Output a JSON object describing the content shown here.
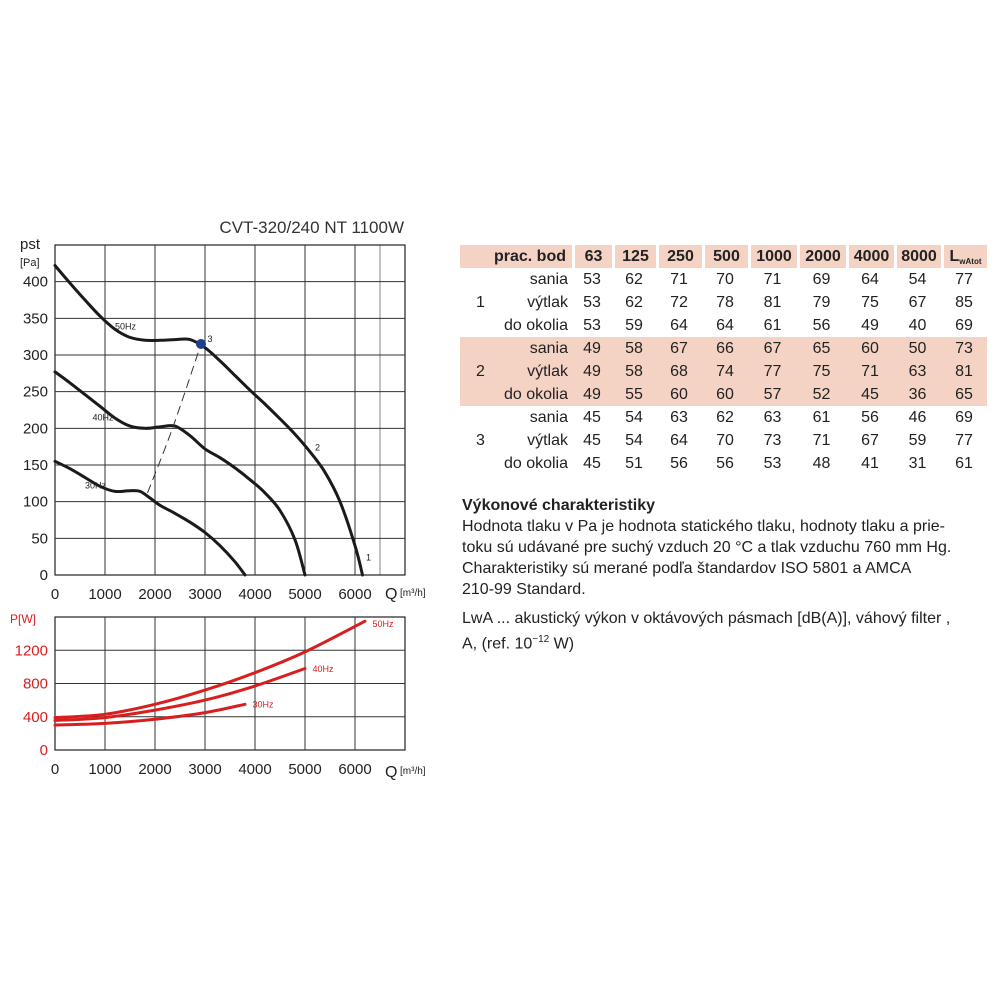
{
  "chart_data": [
    {
      "type": "line",
      "title": "CVT-320/240 NT 1100W",
      "ylabel": "pst",
      "yunit": "[Pa]",
      "xlabel": "Q",
      "xunit": "[m³/h]",
      "xlim": [
        0,
        7000
      ],
      "ylim": [
        0,
        450
      ],
      "xticks": [
        0,
        1000,
        2000,
        3000,
        4000,
        5000,
        6000
      ],
      "yticks": [
        0,
        50,
        100,
        150,
        200,
        250,
        300,
        350,
        400
      ],
      "grid": true,
      "series": [
        {
          "name": "50Hz",
          "x": [
            0,
            300,
            600,
            900,
            1200,
            1500,
            1800,
            2100,
            2400,
            2700,
            3000,
            3300,
            3600,
            3900,
            4200,
            4500,
            4800,
            5100,
            5400,
            5700,
            6000,
            6150
          ],
          "y": [
            422,
            398,
            375,
            353,
            335,
            324,
            320,
            320,
            321,
            321,
            310,
            292,
            272,
            252,
            233,
            213,
            192,
            168,
            140,
            100,
            40,
            0
          ]
        },
        {
          "name": "40Hz",
          "x": [
            0,
            300,
            600,
            900,
            1200,
            1500,
            1800,
            2100,
            2400,
            2700,
            3000,
            3300,
            3600,
            3900,
            4200,
            4500,
            4800,
            5000
          ],
          "y": [
            277,
            262,
            246,
            230,
            214,
            203,
            200,
            202,
            203,
            190,
            172,
            160,
            146,
            130,
            112,
            88,
            48,
            0
          ]
        },
        {
          "name": "30Hz",
          "x": [
            0,
            300,
            600,
            900,
            1200,
            1500,
            1700,
            1900,
            2100,
            2400,
            2700,
            3000,
            3300,
            3600,
            3800
          ],
          "y": [
            155,
            145,
            133,
            121,
            114,
            115,
            114,
            105,
            95,
            84,
            72,
            58,
            40,
            18,
            0
          ]
        }
      ],
      "system_curve": {
        "x": [
          1850,
          2350,
          2920
        ],
        "y": [
          112,
          200,
          315
        ]
      },
      "operating_point": {
        "label": "3",
        "x": 2920,
        "y": 315
      },
      "curve_labels": [
        "1",
        "2",
        "3"
      ]
    },
    {
      "type": "line",
      "ylabel": "P",
      "yunit": "[W]",
      "xlabel": "Q",
      "xunit": "[m³/h]",
      "xlim": [
        0,
        7000
      ],
      "ylim": [
        0,
        1600
      ],
      "xticks": [
        0,
        1000,
        2000,
        3000,
        4000,
        5000,
        6000
      ],
      "yticks": [
        0,
        400,
        800,
        1200
      ],
      "grid": true,
      "series": [
        {
          "name": "50Hz",
          "x": [
            0,
            1000,
            2000,
            3000,
            4000,
            5000,
            6200
          ],
          "y": [
            390,
            430,
            550,
            720,
            930,
            1180,
            1550
          ]
        },
        {
          "name": "40Hz",
          "x": [
            0,
            1000,
            2000,
            3000,
            4000,
            5000
          ],
          "y": [
            355,
            390,
            480,
            600,
            770,
            980
          ]
        },
        {
          "name": "30Hz",
          "x": [
            0,
            1000,
            2000,
            3000,
            3800
          ],
          "y": [
            300,
            320,
            370,
            450,
            550
          ]
        }
      ]
    }
  ],
  "table": {
    "header": [
      "prac. bod",
      "63",
      "125",
      "250",
      "500",
      "1000",
      "2000",
      "4000",
      "8000",
      "LwAtot"
    ],
    "header_last_main": "L",
    "header_last_sub": "wAtot",
    "groups": [
      {
        "point": "1",
        "rows": [
          {
            "label": "sania",
            "values": [
              "53",
              "62",
              "71",
              "70",
              "71",
              "69",
              "64",
              "54",
              "77"
            ]
          },
          {
            "label": "výtlak",
            "values": [
              "53",
              "62",
              "72",
              "78",
              "81",
              "79",
              "75",
              "67",
              "85"
            ]
          },
          {
            "label": "do okolia",
            "values": [
              "53",
              "59",
              "64",
              "64",
              "61",
              "56",
              "49",
              "40",
              "69"
            ]
          }
        ]
      },
      {
        "point": "2",
        "rows": [
          {
            "label": "sania",
            "values": [
              "49",
              "58",
              "67",
              "66",
              "67",
              "65",
              "60",
              "50",
              "73"
            ]
          },
          {
            "label": "výtlak",
            "values": [
              "49",
              "58",
              "68",
              "74",
              "77",
              "75",
              "71",
              "63",
              "81"
            ]
          },
          {
            "label": "do okolia",
            "values": [
              "49",
              "55",
              "60",
              "60",
              "57",
              "52",
              "45",
              "36",
              "65"
            ]
          }
        ]
      },
      {
        "point": "3",
        "rows": [
          {
            "label": "sania",
            "values": [
              "45",
              "54",
              "63",
              "62",
              "63",
              "61",
              "56",
              "46",
              "69"
            ]
          },
          {
            "label": "výtlak",
            "values": [
              "45",
              "54",
              "64",
              "70",
              "73",
              "71",
              "67",
              "59",
              "77"
            ]
          },
          {
            "label": "do okolia",
            "values": [
              "45",
              "51",
              "56",
              "56",
              "53",
              "48",
              "41",
              "31",
              "61"
            ]
          }
        ]
      }
    ]
  },
  "notes": {
    "heading": "Výkonové charakteristiky",
    "line1": "Hodnota tlaku v Pa je hodnota statického tlaku, hodnoty tlaku a prie-",
    "line2": "toku sú udávané pre suchý vzduch 20 °C a tlak vzduchu 760 mm Hg.",
    "line3": "Charakteristiky sú merané podľa štandardov ISO 5801 a AMCA",
    "line4": "210-99 Standard.",
    "lwa1": "LwA ... akustický výkon v oktávových pásmach [dB(A)], váhový filter ,",
    "lwa2_pre": "A, (ref. 10",
    "lwa2_exp": "−12",
    "lwa2_post": " W)"
  },
  "colors": {
    "pressure_curve": "#1a1a1a",
    "power_curve": "#d81e1e",
    "operating_point": "#1f3f8f",
    "highlight": "#f5d3c4",
    "power_axis_text": "#d81e1e"
  }
}
